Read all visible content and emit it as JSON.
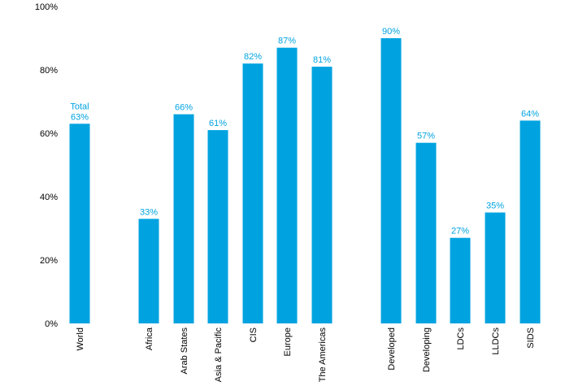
{
  "chart_data": {
    "type": "bar",
    "categories": [
      "World",
      "Africa",
      "Arab States",
      "Asia & Pacific",
      "CIS",
      "Europe",
      "The Americas",
      "Developed",
      "Developing",
      "LDCs",
      "LLDCs",
      "SIDS"
    ],
    "values": [
      63,
      33,
      66,
      61,
      82,
      87,
      81,
      90,
      57,
      27,
      35,
      64
    ],
    "value_labels": [
      "63%",
      "33%",
      "66%",
      "61%",
      "82%",
      "87%",
      "81%",
      "90%",
      "57%",
      "27%",
      "35%",
      "64%"
    ],
    "first_bar_prefix": "Total",
    "ylim": [
      0,
      100
    ],
    "yticks": [
      "0%",
      "20%",
      "40%",
      "60%",
      "80%",
      "100%"
    ],
    "bar_color": "#00a3e0",
    "label_color": "#00a3e0",
    "grid": false
  }
}
